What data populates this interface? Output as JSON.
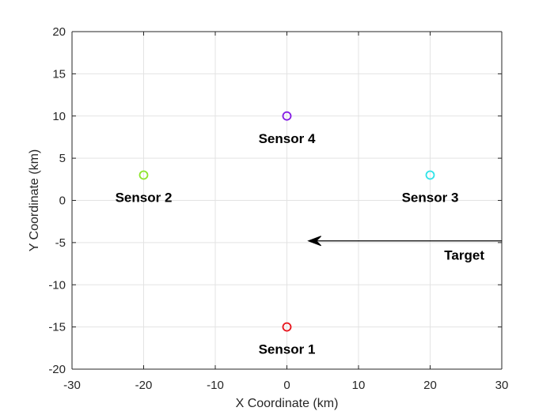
{
  "chart_data": {
    "type": "scatter",
    "title": "",
    "xlabel": "X Coordinate (km)",
    "ylabel": "Y Coordinate (km)",
    "xlim": [
      -30,
      30
    ],
    "ylim": [
      -20,
      20
    ],
    "xticks": [
      "-30",
      "-20",
      "-10",
      "0",
      "10",
      "20",
      "30"
    ],
    "yticks": [
      "-20",
      "-15",
      "-10",
      "-5",
      "0",
      "5",
      "10",
      "15",
      "20"
    ],
    "grid": true,
    "sensors": [
      {
        "name": "Sensor 1",
        "x": 0,
        "y": -15,
        "color": "#e8131b"
      },
      {
        "name": "Sensor 2",
        "x": -20,
        "y": 3,
        "color": "#8ee52d"
      },
      {
        "name": "Sensor 3",
        "x": 20,
        "y": 3,
        "color": "#2fe3e8"
      },
      {
        "name": "Sensor 4",
        "x": 0,
        "y": 10,
        "color": "#8319e4"
      }
    ],
    "target": {
      "name": "Target",
      "start": {
        "x": 30,
        "y": -4.8
      },
      "end": {
        "x": 3,
        "y": -4.8
      },
      "color": "#000000"
    },
    "colors": {
      "grid": "#e3e3e3",
      "axis": "#262626",
      "background": "#ffffff"
    }
  }
}
